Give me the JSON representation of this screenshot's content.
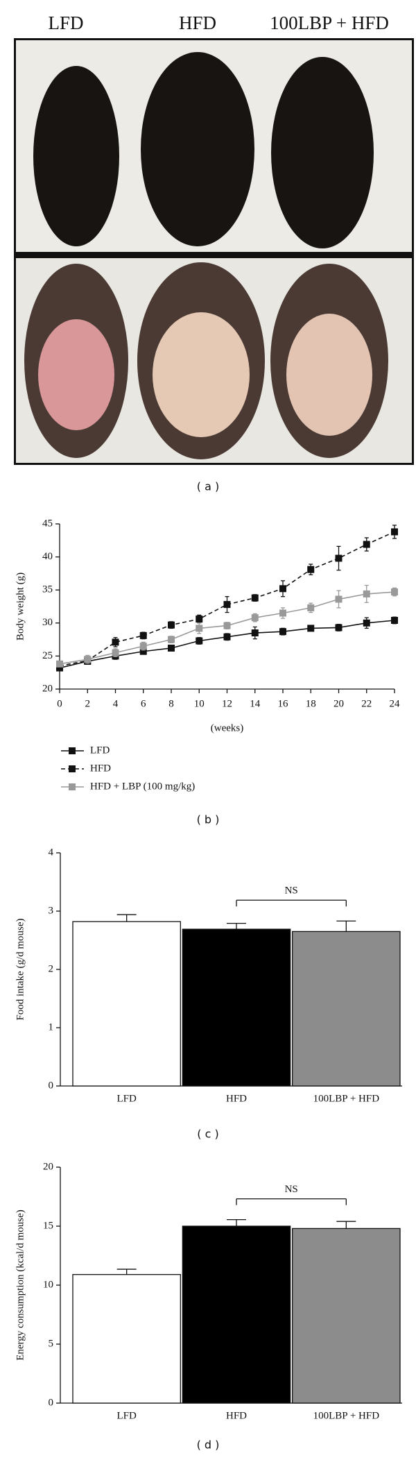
{
  "photo": {
    "labels": [
      "LFD",
      "HFD",
      "100LBP + HFD"
    ]
  },
  "panel_labels": [
    "( a )",
    "( b )",
    "( c )",
    "( d )"
  ],
  "chart_data": [
    {
      "type": "line",
      "x_label": "(weeks)",
      "y_label": "Body weight (g)",
      "x": [
        0,
        2,
        4,
        6,
        8,
        10,
        12,
        14,
        16,
        18,
        20,
        22,
        24
      ],
      "xlim": [
        0,
        24
      ],
      "xticks": [
        0,
        2,
        4,
        6,
        8,
        10,
        12,
        14,
        16,
        18,
        20,
        22,
        24
      ],
      "ylim": [
        20,
        45
      ],
      "yticks": [
        20,
        25,
        30,
        35,
        40,
        45
      ],
      "series": [
        {
          "name": "LFD",
          "color": "#111111",
          "dash": false,
          "values": [
            23.2,
            24.2,
            25.0,
            25.7,
            26.2,
            27.3,
            27.9,
            28.5,
            28.7,
            29.2,
            29.3,
            30.0,
            30.4
          ],
          "errors": [
            0.4,
            0.4,
            0.5,
            0.4,
            0.4,
            0.5,
            0.5,
            0.9,
            0.5,
            0.4,
            0.5,
            0.8,
            0.5
          ]
        },
        {
          "name": "HFD",
          "color": "#111111",
          "dash": true,
          "values": [
            23.5,
            24.3,
            27.1,
            28.1,
            29.7,
            30.6,
            32.8,
            33.8,
            35.2,
            38.1,
            39.8,
            41.9,
            43.8
          ],
          "errors": [
            0.4,
            0.5,
            0.7,
            0.5,
            0.5,
            0.6,
            1.2,
            0.5,
            1.2,
            0.8,
            1.8,
            1.0,
            1.0
          ]
        },
        {
          "name": "HFD + LBP (100 mg/kg)",
          "color": "#999999",
          "dash": false,
          "values": [
            23.8,
            24.5,
            25.5,
            26.5,
            27.5,
            29.2,
            29.6,
            30.8,
            31.5,
            32.3,
            33.6,
            34.4,
            34.7
          ],
          "errors": [
            0.4,
            0.6,
            0.6,
            0.6,
            0.5,
            0.8,
            0.5,
            0.6,
            0.8,
            0.7,
            1.3,
            1.3,
            0.6
          ]
        }
      ]
    },
    {
      "type": "bar",
      "y_label": "Food intake (g/d mouse)",
      "categories": [
        "LFD",
        "HFD",
        "100LBP + HFD"
      ],
      "values": [
        2.82,
        2.69,
        2.65
      ],
      "errors": [
        0.12,
        0.1,
        0.18
      ],
      "colors": [
        "#ffffff",
        "#000000",
        "#8c8c8c"
      ],
      "ylim": [
        0,
        4
      ],
      "yticks": [
        0,
        1,
        2,
        3,
        4
      ],
      "annotation": {
        "text": "NS",
        "between": [
          "HFD",
          "100LBP + HFD"
        ]
      }
    },
    {
      "type": "bar",
      "y_label": "Energy consumption (kcal/d mouse)",
      "categories": [
        "LFD",
        "HFD",
        "100LBP + HFD"
      ],
      "values": [
        10.9,
        15.0,
        14.8
      ],
      "errors": [
        0.45,
        0.55,
        0.6
      ],
      "colors": [
        "#ffffff",
        "#000000",
        "#8c8c8c"
      ],
      "ylim": [
        0,
        20
      ],
      "yticks": [
        0,
        5,
        10,
        15,
        20
      ],
      "annotation": {
        "text": "NS",
        "between": [
          "HFD",
          "100LBP + HFD"
        ]
      }
    }
  ]
}
